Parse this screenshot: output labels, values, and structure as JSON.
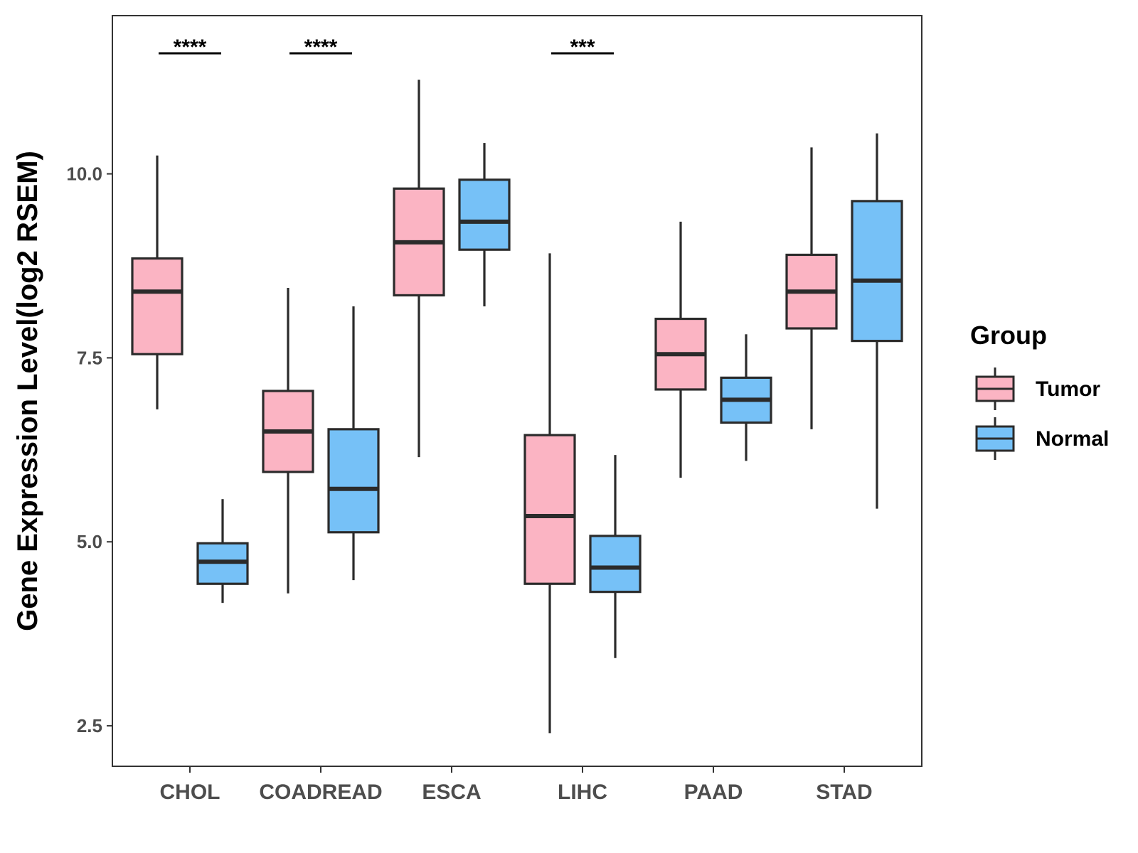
{
  "chart_data": {
    "type": "boxplot",
    "title": "",
    "xlabel": "",
    "ylabel": "Gene Expression Level(log2 RSEM)",
    "ylim": [
      1.95,
      12.15
    ],
    "yticks": [
      2.5,
      5.0,
      7.5,
      10.0
    ],
    "ytick_labels": [
      "2.5",
      "5.0",
      "7.5",
      "10.0"
    ],
    "categories": [
      "CHOL",
      "COADREAD",
      "ESCA",
      "LIHC",
      "PAAD",
      "STAD"
    ],
    "legend": {
      "title": "Group",
      "position": "right"
    },
    "series": [
      {
        "name": "Tumor",
        "color": "#fbb4c3",
        "boxes": [
          {
            "min": 6.8,
            "q1": 7.55,
            "median": 8.4,
            "q3": 8.85,
            "max": 10.25
          },
          {
            "min": 4.3,
            "q1": 5.95,
            "median": 6.5,
            "q3": 7.05,
            "max": 8.45
          },
          {
            "min": 6.15,
            "q1": 8.35,
            "median": 9.07,
            "q3": 9.8,
            "max": 11.28
          },
          {
            "min": 2.4,
            "q1": 4.43,
            "median": 5.35,
            "q3": 6.45,
            "max": 8.92
          },
          {
            "min": 5.87,
            "q1": 7.07,
            "median": 7.55,
            "q3": 8.03,
            "max": 9.35
          },
          {
            "min": 6.53,
            "q1": 7.9,
            "median": 8.4,
            "q3": 8.9,
            "max": 10.36
          }
        ]
      },
      {
        "name": "Normal",
        "color": "#76c1f7",
        "boxes": [
          {
            "min": 4.17,
            "q1": 4.43,
            "median": 4.73,
            "q3": 4.98,
            "max": 5.58
          },
          {
            "min": 4.48,
            "q1": 5.13,
            "median": 5.72,
            "q3": 6.53,
            "max": 8.2
          },
          {
            "min": 8.2,
            "q1": 8.97,
            "median": 9.35,
            "q3": 9.92,
            "max": 10.42
          },
          {
            "min": 3.42,
            "q1": 4.32,
            "median": 4.65,
            "q3": 5.08,
            "max": 6.18
          },
          {
            "min": 6.1,
            "q1": 6.62,
            "median": 6.93,
            "q3": 7.23,
            "max": 7.82
          },
          {
            "min": 5.45,
            "q1": 7.73,
            "median": 8.55,
            "q3": 9.63,
            "max": 10.55
          }
        ]
      }
    ],
    "significance": [
      {
        "category": "CHOL",
        "label": "****"
      },
      {
        "category": "COADREAD",
        "label": "****"
      },
      {
        "category": "LIHC",
        "label": "***"
      }
    ]
  }
}
